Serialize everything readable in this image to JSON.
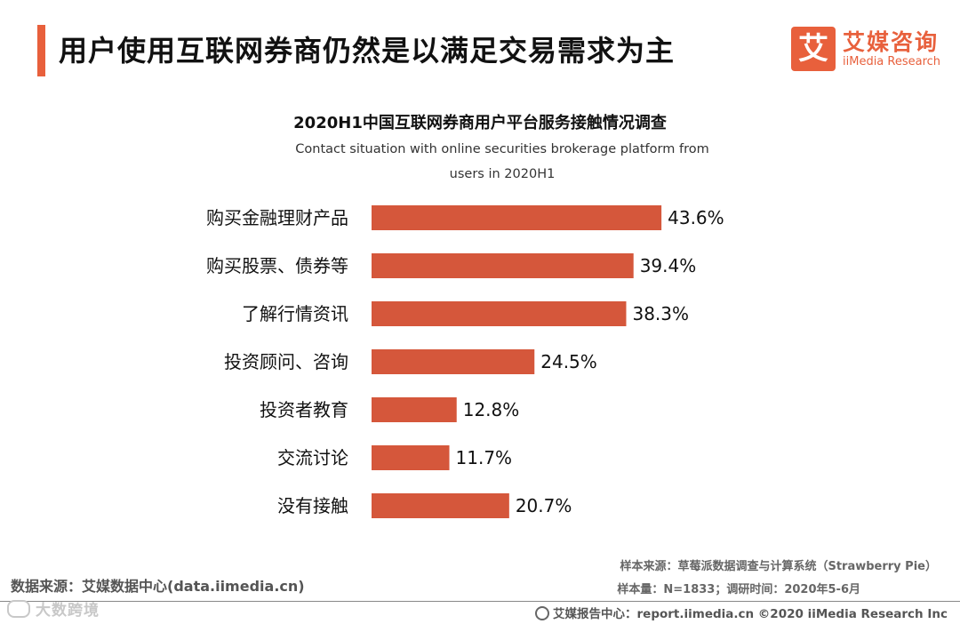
{
  "header": {
    "title": "用户使用互联网券商仍然是以满足交易需求为主",
    "logo_mark": "艾",
    "logo_cn": "艾媒咨询",
    "logo_en": "iiMedia Research"
  },
  "chart_data": {
    "type": "bar",
    "orientation": "horizontal",
    "title": "2020H1中国互联网券商用户平台服务接触情况调查",
    "subtitle_line1": "Contact situation with  online securities brokerage platform from",
    "subtitle_line2": "users in 2020H1",
    "categories": [
      "购买金融理财产品",
      "购买股票、债券等",
      "了解行情资讯",
      "投资顾问、咨询",
      "投资者教育",
      "交流讨论",
      "没有接触"
    ],
    "values": [
      43.6,
      39.4,
      38.3,
      24.5,
      12.8,
      11.7,
      20.7
    ],
    "value_labels": [
      "43.6%",
      "39.4%",
      "38.3%",
      "24.5%",
      "12.8%",
      "11.7%",
      "20.7%"
    ],
    "unit": "%",
    "xlim": [
      0,
      50
    ],
    "bar_color": "#d5573b",
    "grid": false,
    "legend": "none"
  },
  "footer": {
    "data_source": "数据来源：艾媒数据中心(data.iimedia.cn)",
    "sample_source": "样本来源：草莓派数据调查与计算系统（Strawberry Pie）",
    "sample_size": "样本量：N=1833；调研时间：2020年5-6月",
    "report_center": "艾媒报告中心：report.iimedia.cn  ©2020  iiMedia Research  Inc",
    "watermark": "大数跨境"
  },
  "colors": {
    "accent": "#e8603c",
    "bar": "#d5573b"
  }
}
